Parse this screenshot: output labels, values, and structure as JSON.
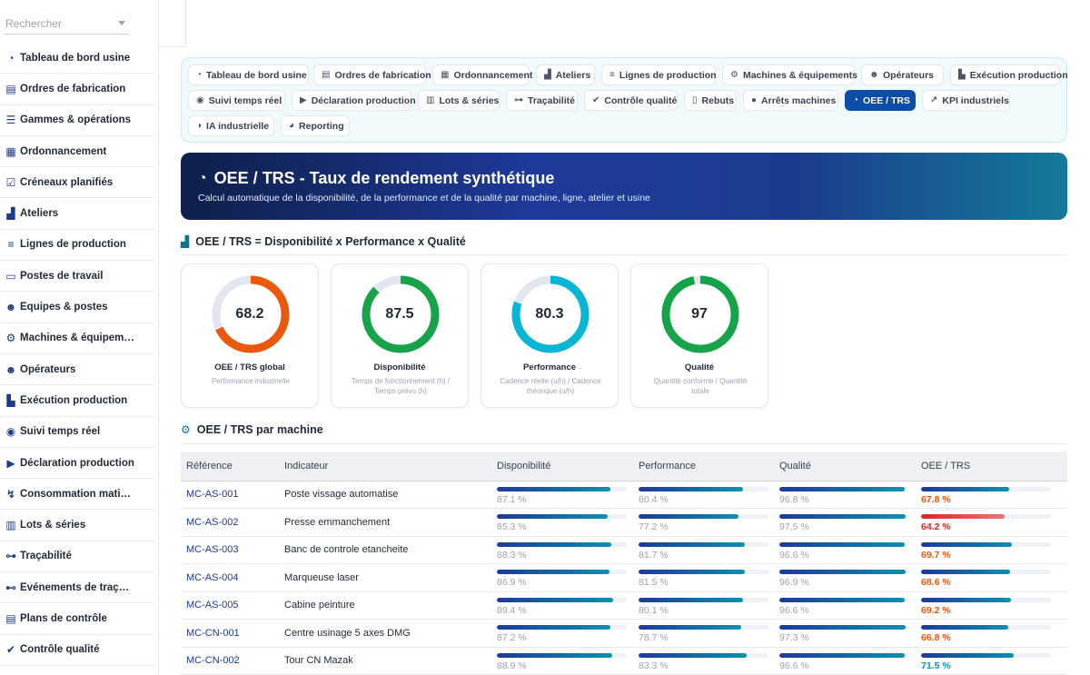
{
  "search": {
    "placeholder": "Rechercher"
  },
  "sidebar": {
    "items": [
      {
        "label": "Tableau de bord usine",
        "icon": "gauge-icon"
      },
      {
        "label": "Ordres de fabrication",
        "icon": "clipboard-icon"
      },
      {
        "label": "Gammes & opérations",
        "icon": "list-icon"
      },
      {
        "label": "Ordonnancement",
        "icon": "calendar-icon"
      },
      {
        "label": "Créneaux planifiés",
        "icon": "calendar-check-icon"
      },
      {
        "label": "Ateliers",
        "icon": "factory-icon"
      },
      {
        "label": "Lignes de production",
        "icon": "lines-icon"
      },
      {
        "label": "Postes de travail",
        "icon": "desktop-icon"
      },
      {
        "label": "Équipes & postes",
        "icon": "user-group-icon"
      },
      {
        "label": "Machines & équipem…",
        "icon": "cogs-icon"
      },
      {
        "label": "Opérateurs",
        "icon": "users-icon"
      },
      {
        "label": "Exécution production",
        "icon": "industry-icon"
      },
      {
        "label": "Suivi temps réel",
        "icon": "broadcast-icon"
      },
      {
        "label": "Déclaration production",
        "icon": "play-circle-icon"
      },
      {
        "label": "Consommation mati…",
        "icon": "dolly-icon"
      },
      {
        "label": "Lots & séries",
        "icon": "barcode-icon"
      },
      {
        "label": "Traçabilité",
        "icon": "sitemap-icon"
      },
      {
        "label": "Événements de traç…",
        "icon": "network-icon"
      },
      {
        "label": "Plans de contrôle",
        "icon": "clipboard-list-icon"
      },
      {
        "label": "Contrôle qualité",
        "icon": "check-double-icon"
      }
    ]
  },
  "nav": {
    "tabs": [
      {
        "label": "Tableau de bord usine",
        "icon": "gauge-icon"
      },
      {
        "label": "Ordres de fabrication",
        "icon": "clipboard-icon"
      },
      {
        "label": "Ordonnancement",
        "icon": "calendar-icon"
      },
      {
        "label": "Ateliers",
        "icon": "factory-icon"
      },
      {
        "label": "Lignes de production",
        "icon": "lines-icon"
      },
      {
        "label": "Machines & équipements",
        "icon": "cogs-icon"
      },
      {
        "label": "Opérateurs",
        "icon": "users-icon"
      },
      {
        "label": "Exécution production",
        "icon": "industry-icon"
      },
      {
        "label": "Suivi temps réel",
        "icon": "broadcast-icon"
      },
      {
        "label": "Déclaration production",
        "icon": "play-circle-icon"
      },
      {
        "label": "Lots & séries",
        "icon": "barcode-icon"
      },
      {
        "label": "Traçabilité",
        "icon": "sitemap-icon"
      },
      {
        "label": "Contrôle qualité",
        "icon": "check-double-icon"
      },
      {
        "label": "Rebuts",
        "icon": "trash-icon"
      },
      {
        "label": "Arrêts machines",
        "icon": "stop-circle-icon"
      },
      {
        "label": "OEE / TRS",
        "icon": "gauge-icon",
        "active": true
      },
      {
        "label": "KPI industriels",
        "icon": "chart-line-icon"
      },
      {
        "label": "IA industrielle",
        "icon": "brain-icon"
      },
      {
        "label": "Reporting",
        "icon": "pie-chart-icon"
      }
    ]
  },
  "hero": {
    "title": "OEE / TRS - Taux de rendement synthétique",
    "subtitle": "Calcul automatique de la disponibilité, de la performance et de la qualité par machine, ligne, atelier et usine"
  },
  "formula_section": {
    "title": "OEE / TRS = Disponibilité x Performance x Qualité"
  },
  "gauges": [
    {
      "value": "68.2",
      "pct": 68.2,
      "label": "OEE / TRS global",
      "desc": "Performance industrielle",
      "color": "#ea580c"
    },
    {
      "value": "87.5",
      "pct": 87.5,
      "label": "Disponibilité",
      "desc": "Temps de fonctionnement (h) / Temps prévu (h)",
      "color": "#16a34a"
    },
    {
      "value": "80.3",
      "pct": 80.3,
      "label": "Performance",
      "desc": "Cadence réelle (u/h) / Cadence théorique (u/h)",
      "color": "#06b6d4"
    },
    {
      "value": "97",
      "pct": 97,
      "label": "Qualité",
      "desc": "Quantité conforme / Quantité totale",
      "color": "#16a34a"
    }
  ],
  "machine_section": {
    "title": "OEE / TRS par machine"
  },
  "table": {
    "headers": [
      "Référence",
      "Indicateur",
      "Disponibilité",
      "Performance",
      "Qualité",
      "OEE / TRS"
    ],
    "rows": [
      {
        "ref": "MC-AS-001",
        "name": "Poste vissage automatise",
        "dispo": 87.1,
        "dispo_txt": "87.1 %",
        "perf": 80.4,
        "perf_txt": "80.4 %",
        "qual": 96.8,
        "qual_txt": "96.8 %",
        "oee": 67.8,
        "oee_txt": "67.8 %",
        "status": "warn"
      },
      {
        "ref": "MC-AS-002",
        "name": "Presse emmanchement",
        "dispo": 85.3,
        "dispo_txt": "85.3 %",
        "perf": 77.2,
        "perf_txt": "77.2 %",
        "qual": 97.5,
        "qual_txt": "97.5 %",
        "oee": 64.2,
        "oee_txt": "64.2 %",
        "status": "bad"
      },
      {
        "ref": "MC-AS-003",
        "name": "Banc de controle etancheite",
        "dispo": 88.3,
        "dispo_txt": "88.3 %",
        "perf": 81.7,
        "perf_txt": "81.7 %",
        "qual": 96.6,
        "qual_txt": "96.6 %",
        "oee": 69.7,
        "oee_txt": "69.7 %",
        "status": "warn"
      },
      {
        "ref": "MC-AS-004",
        "name": "Marqueuse laser",
        "dispo": 86.9,
        "dispo_txt": "86.9 %",
        "perf": 81.5,
        "perf_txt": "81.5 %",
        "qual": 96.9,
        "qual_txt": "96.9 %",
        "oee": 68.6,
        "oee_txt": "68.6 %",
        "status": "warn"
      },
      {
        "ref": "MC-AS-005",
        "name": "Cabine peinture",
        "dispo": 89.4,
        "dispo_txt": "89.4 %",
        "perf": 80.1,
        "perf_txt": "80.1 %",
        "qual": 96.6,
        "qual_txt": "96.6 %",
        "oee": 69.2,
        "oee_txt": "69.2 %",
        "status": "warn"
      },
      {
        "ref": "MC-CN-001",
        "name": "Centre usinage 5 axes DMG",
        "dispo": 87.2,
        "dispo_txt": "87.2 %",
        "perf": 78.7,
        "perf_txt": "78.7 %",
        "qual": 97.3,
        "qual_txt": "97.3 %",
        "oee": 66.8,
        "oee_txt": "66.8 %",
        "status": "warn"
      },
      {
        "ref": "MC-CN-002",
        "name": "Tour CN Mazak",
        "dispo": 88.9,
        "dispo_txt": "88.9 %",
        "perf": 83.3,
        "perf_txt": "83.3 %",
        "qual": 96.6,
        "qual_txt": "96.6 %",
        "oee": 71.5,
        "oee_txt": "71.5 %",
        "status": "good"
      }
    ]
  }
}
